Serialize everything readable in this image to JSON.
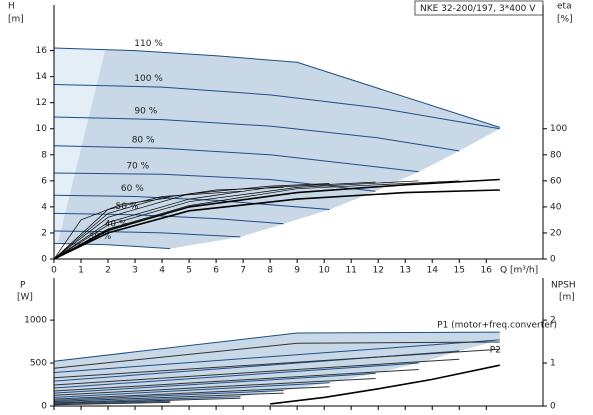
{
  "chart_data": [
    {
      "type": "line",
      "title": "NKE 32-200/197, 3*400 V",
      "x_label": "Q [m³/h]",
      "y_label": "H",
      "y_unit": "[m]",
      "y2_label": "eta",
      "y2_unit": "[%]",
      "xlim": [
        0,
        18.1
      ],
      "ylim": [
        0,
        19.5
      ],
      "y2lim": [
        0,
        195
      ],
      "xticks": [
        0,
        1,
        2,
        3,
        4,
        5,
        6,
        7,
        8,
        9,
        10,
        11,
        12,
        13,
        14,
        15,
        16
      ],
      "yticks": [
        0,
        2,
        4,
        6,
        8,
        10,
        12,
        14,
        16
      ],
      "y2ticks": [
        0,
        20,
        40,
        60,
        80,
        100
      ],
      "series": [
        {
          "name": "110 %",
          "color": "#1f4e86",
          "x": [
            0,
            3,
            6,
            9,
            16.5
          ],
          "values": [
            16.2,
            16.0,
            15.6,
            15.1,
            10.1
          ]
        },
        {
          "name": "100 %",
          "color": "#1f4e86",
          "x": [
            0,
            4,
            8,
            12,
            16.5
          ],
          "values": [
            13.4,
            13.2,
            12.6,
            11.6,
            10.0
          ]
        },
        {
          "name": "90 %",
          "color": "#1f4e86",
          "x": [
            0,
            4,
            8,
            12,
            15
          ],
          "values": [
            10.9,
            10.7,
            10.2,
            9.3,
            8.3
          ]
        },
        {
          "name": "80 %",
          "color": "#1f4e86",
          "x": [
            0,
            4,
            8,
            13.5
          ],
          "values": [
            8.7,
            8.5,
            8.0,
            6.7
          ]
        },
        {
          "name": "70 %",
          "color": "#1f4e86",
          "x": [
            0,
            4,
            8,
            11.9
          ],
          "values": [
            6.6,
            6.5,
            6.1,
            5.2
          ]
        },
        {
          "name": "60 %",
          "color": "#1f4e86",
          "x": [
            0,
            3,
            6,
            10.2
          ],
          "values": [
            4.9,
            4.8,
            4.5,
            3.8
          ]
        },
        {
          "name": "50 %",
          "color": "#1f4e86",
          "x": [
            0,
            3,
            6,
            8.5
          ],
          "values": [
            3.5,
            3.4,
            3.1,
            2.7
          ]
        },
        {
          "name": "40 %",
          "color": "#1f4e86",
          "x": [
            0,
            2,
            4,
            6.9
          ],
          "values": [
            2.15,
            2.1,
            2.0,
            1.7
          ]
        },
        {
          "name": "30 %",
          "color": "#1f4e86",
          "x": [
            0,
            2,
            4.3
          ],
          "values": [
            1.2,
            1.1,
            0.8
          ]
        },
        {
          "axis": "y2",
          "color": "#000000",
          "x": [
            0,
            2,
            5,
            9,
            13,
            16.5
          ],
          "values": [
            0,
            22,
            40,
            51,
            57,
            61
          ]
        },
        {
          "axis": "y2",
          "color": "#000000",
          "x": [
            0,
            2,
            5,
            9,
            13,
            16.5
          ],
          "values": [
            0,
            20,
            37,
            46,
            51,
            53
          ]
        },
        {
          "axis": "y2",
          "color": "#000000",
          "x": [
            0,
            2,
            5,
            9,
            15
          ],
          "values": [
            0,
            23,
            41,
            54,
            60
          ]
        },
        {
          "axis": "y2",
          "color": "#000000",
          "x": [
            0,
            2,
            5,
            9,
            13.5
          ],
          "values": [
            0,
            26,
            44,
            55,
            60
          ]
        },
        {
          "axis": "y2",
          "color": "#000000",
          "x": [
            0,
            2,
            5,
            8,
            11.9
          ],
          "values": [
            0,
            28,
            46,
            55,
            59
          ]
        },
        {
          "axis": "y2",
          "color": "#000000",
          "x": [
            0,
            2,
            5,
            8,
            10.2
          ],
          "values": [
            0,
            32,
            50,
            56,
            58
          ]
        },
        {
          "axis": "y2",
          "color": "#000000",
          "x": [
            0,
            2,
            4,
            6,
            8.5
          ],
          "values": [
            0,
            35,
            47,
            53,
            55
          ]
        },
        {
          "axis": "y2",
          "color": "#000000",
          "x": [
            0,
            2,
            4,
            6.9
          ],
          "values": [
            0,
            38,
            48,
            52
          ]
        },
        {
          "axis": "y2",
          "color": "#000000",
          "x": [
            0,
            1,
            2.5,
            4.3
          ],
          "values": [
            0,
            30,
            42,
            47
          ]
        }
      ]
    },
    {
      "type": "line",
      "y_label": "P",
      "y_unit": "[W]",
      "y2_label": "NPSH",
      "y2_unit": "[m]",
      "xlim": [
        0,
        18.1
      ],
      "ylim": [
        0,
        1490
      ],
      "y2lim": [
        0,
        2.98
      ],
      "xticks": [
        0,
        1,
        2,
        3,
        4,
        5,
        6,
        7,
        8,
        9,
        10,
        11,
        12,
        13,
        14,
        15,
        16
      ],
      "yticks": [
        0,
        500,
        1000
      ],
      "y2ticks": [
        0,
        1,
        2
      ],
      "series": [
        {
          "name": "P1 (motor+freq.converter)",
          "color": "#1f4e86",
          "x": [
            0,
            9,
            16.5
          ],
          "values": [
            520,
            850,
            860
          ]
        },
        {
          "color": "#1f4e86",
          "x": [
            0,
            16.5
          ],
          "values": [
            390,
            770
          ]
        },
        {
          "color": "#1f4e86",
          "x": [
            0,
            15
          ],
          "values": [
            290,
            640
          ]
        },
        {
          "color": "#1f4e86",
          "x": [
            0,
            13.5
          ],
          "values": [
            210,
            500
          ]
        },
        {
          "color": "#1f4e86",
          "x": [
            0,
            11.9
          ],
          "values": [
            150,
            380
          ]
        },
        {
          "color": "#1f4e86",
          "x": [
            0,
            10.2
          ],
          "values": [
            100,
            270
          ]
        },
        {
          "color": "#1f4e86",
          "x": [
            0,
            8.5
          ],
          "values": [
            65,
            180
          ]
        },
        {
          "color": "#1f4e86",
          "x": [
            0,
            6.9
          ],
          "values": [
            40,
            110
          ]
        },
        {
          "color": "#1f4e86",
          "x": [
            0,
            4.3
          ],
          "values": [
            20,
            55
          ]
        },
        {
          "name": "P2",
          "color": "#333333",
          "x": [
            0,
            9,
            16.5
          ],
          "values": [
            440,
            730,
            745
          ]
        },
        {
          "color": "#333333",
          "x": [
            0,
            16.5
          ],
          "values": [
            330,
            660
          ]
        },
        {
          "color": "#333333",
          "x": [
            0,
            15
          ],
          "values": [
            245,
            545
          ]
        },
        {
          "color": "#333333",
          "x": [
            0,
            13.5
          ],
          "values": [
            175,
            425
          ]
        },
        {
          "color": "#333333",
          "x": [
            0,
            11.9
          ],
          "values": [
            125,
            320
          ]
        },
        {
          "color": "#333333",
          "x": [
            0,
            10.2
          ],
          "values": [
            80,
            225
          ]
        },
        {
          "color": "#333333",
          "x": [
            0,
            8.5
          ],
          "values": [
            52,
            150
          ]
        },
        {
          "color": "#333333",
          "x": [
            0,
            6.9
          ],
          "values": [
            32,
            90
          ]
        },
        {
          "color": "#333333",
          "x": [
            0,
            4.3
          ],
          "values": [
            15,
            42
          ]
        },
        {
          "axis": "y2",
          "color": "#000000",
          "x": [
            8,
            10,
            12,
            14,
            16.5
          ],
          "values": [
            0.05,
            0.2,
            0.4,
            0.62,
            0.95
          ]
        }
      ]
    }
  ]
}
